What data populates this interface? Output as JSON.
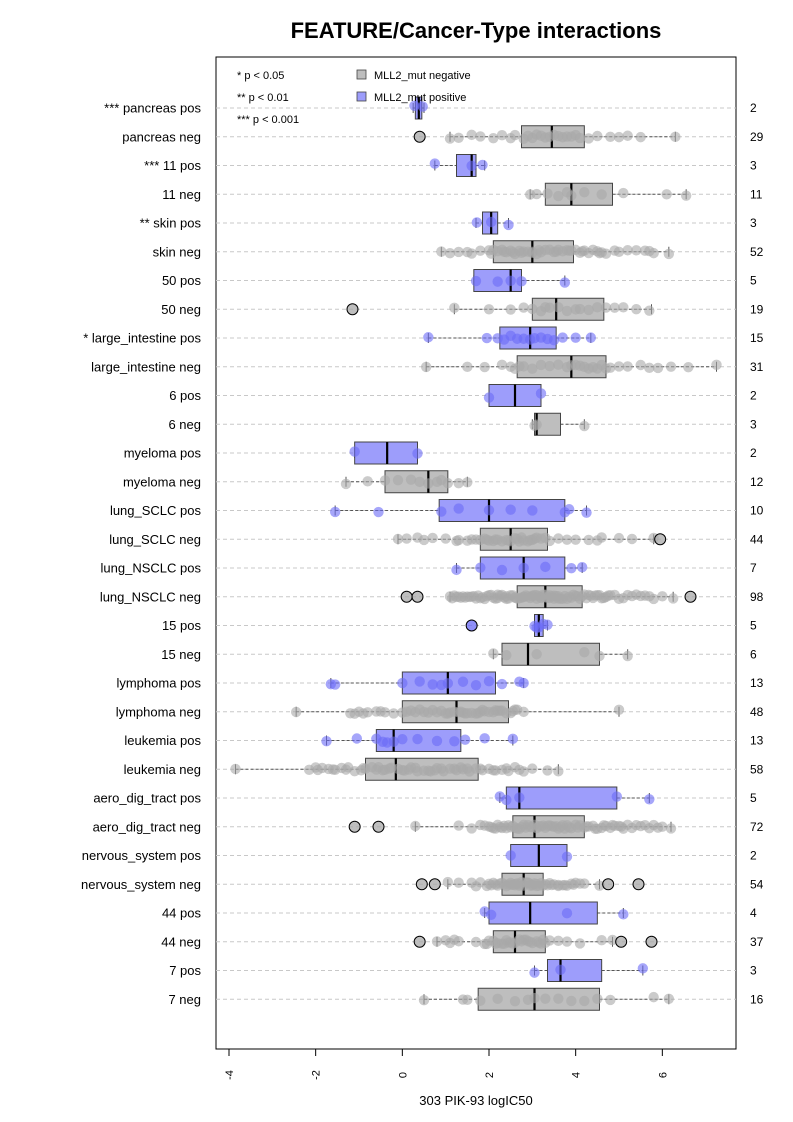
{
  "chart_data": {
    "type": "boxplot",
    "title": "FEATURE/Cancer-Type interactions",
    "xlabel": "303 PIK-93 logIC50",
    "xlim": [
      -4.3,
      7.7
    ],
    "xticks": [
      -4,
      -2,
      0,
      2,
      4,
      6
    ],
    "significance_notes": [
      "* p < 0.05",
      "** p < 0.01",
      "*** p < 0.001"
    ],
    "legend": [
      {
        "label": "MLL2_mut negative",
        "color": "#bebebe"
      },
      {
        "label": "MLL2_mut positive",
        "color": "#9d9dfb"
      }
    ],
    "colors": {
      "negative_box": "#bebebe",
      "positive_box": "#9d9dfb",
      "negative_point": "#a8a8a8",
      "positive_point": "#6a6af7"
    },
    "rows": [
      {
        "label": "*** pancreas pos",
        "n": "2",
        "group": "pos",
        "min": 0.25,
        "q1": 0.3,
        "median": 0.38,
        "q3": 0.45,
        "max": 0.5,
        "points": [
          0.28,
          0.47
        ],
        "outliers": []
      },
      {
        "label": "pancreas neg",
        "n": "29",
        "group": "neg",
        "min": 1.1,
        "q1": 2.75,
        "median": 3.45,
        "q3": 4.2,
        "max": 6.3,
        "points": [
          1.1,
          1.3,
          1.6,
          1.8,
          2.1,
          2.3,
          2.5,
          2.6,
          2.8,
          2.9,
          3.0,
          3.1,
          3.2,
          3.3,
          3.4,
          3.5,
          3.6,
          3.7,
          3.8,
          3.9,
          4.0,
          4.1,
          4.3,
          4.5,
          4.8,
          5.0,
          5.2,
          5.5,
          6.3
        ],
        "outliers": [
          0.4
        ]
      },
      {
        "label": "*** 11 pos",
        "n": "3",
        "group": "pos",
        "min": 0.75,
        "q1": 1.25,
        "median": 1.6,
        "q3": 1.7,
        "max": 1.9,
        "points": [
          0.75,
          1.6,
          1.85
        ],
        "outliers": []
      },
      {
        "label": "11 neg",
        "n": "11",
        "group": "neg",
        "min": 2.95,
        "q1": 3.3,
        "median": 3.9,
        "q3": 4.85,
        "max": 6.55,
        "points": [
          2.95,
          3.1,
          3.35,
          3.6,
          3.8,
          3.9,
          4.2,
          4.6,
          5.1,
          6.1,
          6.55
        ],
        "outliers": []
      },
      {
        "label": "** skin pos",
        "n": "3",
        "group": "pos",
        "min": 1.7,
        "q1": 1.85,
        "median": 2.05,
        "q3": 2.2,
        "max": 2.45,
        "points": [
          1.72,
          2.05,
          2.45
        ],
        "outliers": []
      },
      {
        "label": "skin neg",
        "n": "52",
        "group": "neg",
        "min": 0.9,
        "q1": 2.1,
        "median": 3.0,
        "q3": 3.95,
        "max": 6.15,
        "points": [
          0.9,
          1.1,
          1.3,
          1.6,
          1.8,
          2.0,
          2.1,
          2.2,
          2.3,
          2.4,
          2.5,
          2.6,
          2.7,
          2.8,
          2.9,
          3.0,
          3.0,
          3.1,
          3.2,
          3.3,
          3.4,
          3.5,
          3.6,
          3.7,
          3.8,
          3.9,
          4.0,
          4.1,
          4.2,
          4.3,
          4.4,
          4.5,
          4.6,
          4.7,
          4.9,
          5.0,
          5.2,
          5.4,
          5.6,
          5.8,
          6.15,
          2.05,
          2.35,
          2.75,
          3.15,
          3.55,
          3.85,
          4.15,
          4.55,
          1.5,
          5.7,
          2.55
        ],
        "outliers": []
      },
      {
        "label": "50 pos",
        "n": "5",
        "group": "pos",
        "min": 1.65,
        "q1": 1.65,
        "median": 2.5,
        "q3": 2.75,
        "max": 3.75,
        "points": [
          1.7,
          2.2,
          2.5,
          2.75,
          3.75
        ],
        "outliers": []
      },
      {
        "label": "50 neg",
        "n": "19",
        "group": "neg",
        "min": 1.2,
        "q1": 3.0,
        "median": 3.55,
        "q3": 4.65,
        "max": 5.75,
        "points": [
          1.2,
          2.0,
          2.5,
          2.8,
          3.0,
          3.2,
          3.4,
          3.6,
          3.8,
          4.0,
          4.1,
          4.3,
          4.5,
          4.7,
          4.9,
          5.1,
          5.4,
          5.7,
          3.3
        ],
        "outliers": [
          -1.15
        ]
      },
      {
        "label": "* large_intestine pos",
        "n": "15",
        "group": "pos",
        "min": 0.6,
        "q1": 2.25,
        "median": 2.95,
        "q3": 3.55,
        "max": 4.35,
        "points": [
          0.6,
          1.95,
          2.2,
          2.35,
          2.5,
          2.65,
          2.8,
          2.95,
          3.05,
          3.2,
          3.35,
          3.5,
          3.7,
          4.0,
          4.35
        ],
        "outliers": []
      },
      {
        "label": "large_intestine neg",
        "n": "31",
        "group": "neg",
        "min": 0.55,
        "q1": 2.65,
        "median": 3.9,
        "q3": 4.7,
        "max": 7.25,
        "points": [
          0.55,
          1.5,
          1.9,
          2.3,
          2.5,
          2.6,
          2.8,
          3.0,
          3.2,
          3.4,
          3.6,
          3.8,
          3.9,
          4.0,
          4.1,
          4.2,
          4.3,
          4.4,
          4.5,
          4.6,
          4.7,
          4.8,
          5.0,
          5.2,
          5.5,
          5.7,
          5.9,
          6.2,
          6.6,
          7.25,
          2.7
        ],
        "outliers": []
      },
      {
        "label": "6 pos",
        "n": "2",
        "group": "pos",
        "min": 2.0,
        "q1": 2.0,
        "median": 2.6,
        "q3": 3.2,
        "max": 3.2,
        "points": [
          2.0,
          3.2
        ],
        "outliers": []
      },
      {
        "label": "6 neg",
        "n": "3",
        "group": "neg",
        "min": 3.0,
        "q1": 3.05,
        "median": 3.1,
        "q3": 3.65,
        "max": 4.2,
        "points": [
          3.05,
          3.1,
          4.2
        ],
        "outliers": []
      },
      {
        "label": "myeloma pos",
        "n": "2",
        "group": "pos",
        "min": -1.1,
        "q1": -1.1,
        "median": -0.35,
        "q3": 0.35,
        "max": 0.35,
        "points": [
          -1.1,
          0.35
        ],
        "outliers": []
      },
      {
        "label": "myeloma neg",
        "n": "12",
        "group": "neg",
        "min": -1.3,
        "q1": -0.4,
        "median": 0.6,
        "q3": 1.05,
        "max": 1.5,
        "points": [
          -1.3,
          -0.8,
          -0.4,
          -0.1,
          0.2,
          0.4,
          0.6,
          0.8,
          0.9,
          1.05,
          1.3,
          1.5
        ],
        "outliers": []
      },
      {
        "label": "lung_SCLC pos",
        "n": "10",
        "group": "pos",
        "min": -1.55,
        "q1": 0.85,
        "median": 2.0,
        "q3": 3.75,
        "max": 4.25,
        "points": [
          -1.55,
          -0.55,
          0.9,
          1.3,
          2.0,
          2.5,
          3.0,
          3.75,
          3.85,
          4.25
        ],
        "outliers": []
      },
      {
        "label": "lung_SCLC neg",
        "n": "44",
        "group": "neg",
        "min": -0.1,
        "q1": 1.8,
        "median": 2.5,
        "q3": 3.35,
        "max": 5.8,
        "points": [
          -0.1,
          0.1,
          0.5,
          0.7,
          1.0,
          1.3,
          1.5,
          1.7,
          1.8,
          1.9,
          2.0,
          2.1,
          2.2,
          2.3,
          2.4,
          2.5,
          2.6,
          2.7,
          2.8,
          2.9,
          3.0,
          3.1,
          3.2,
          3.3,
          3.4,
          3.6,
          3.8,
          4.0,
          4.3,
          4.6,
          5.0,
          5.3,
          5.8,
          1.6,
          2.15,
          2.45,
          2.75,
          3.05,
          1.25,
          0.35,
          4.5,
          2.95,
          1.95,
          2.65
        ],
        "outliers": [
          5.95
        ]
      },
      {
        "label": "lung_NSCLC pos",
        "n": "7",
        "group": "pos",
        "min": 1.25,
        "q1": 1.8,
        "median": 2.8,
        "q3": 3.75,
        "max": 4.15,
        "points": [
          1.25,
          1.8,
          2.3,
          2.8,
          3.3,
          3.9,
          4.15
        ],
        "outliers": []
      },
      {
        "label": "lung_NSCLC neg",
        "n": "98",
        "group": "neg",
        "min": 1.1,
        "q1": 2.65,
        "median": 3.3,
        "q3": 4.15,
        "max": 6.25,
        "points": [
          1.1,
          1.2,
          1.3,
          1.4,
          1.5,
          1.6,
          1.7,
          1.8,
          1.9,
          2.0,
          2.1,
          2.2,
          2.3,
          2.4,
          2.5,
          2.6,
          2.7,
          2.8,
          2.9,
          3.0,
          3.1,
          3.2,
          3.3,
          3.4,
          3.5,
          3.6,
          3.7,
          3.8,
          3.9,
          4.0,
          4.1,
          4.2,
          4.3,
          4.4,
          4.5,
          4.6,
          4.7,
          4.8,
          4.9,
          5.0,
          5.2,
          5.4,
          5.6,
          5.8,
          6.0,
          6.25,
          1.15,
          1.35,
          1.55,
          1.75,
          1.95,
          2.15,
          2.35,
          2.55,
          2.75,
          2.95,
          3.15,
          3.35,
          3.55,
          3.75,
          3.95,
          4.15,
          4.35,
          4.55,
          4.75,
          5.1,
          5.3,
          5.5,
          2.05,
          2.25,
          2.45,
          2.65,
          2.85,
          3.05,
          3.25,
          3.45,
          3.65,
          3.85,
          4.05,
          4.25,
          1.45,
          1.65,
          1.85,
          2.8,
          3.0,
          3.2,
          3.4,
          3.6,
          2.6,
          2.4,
          2.2,
          3.1,
          3.3,
          3.5,
          4.45,
          4.65,
          5.7,
          1.25
        ],
        "outliers": [
          0.1,
          0.35,
          6.65
        ]
      },
      {
        "label": "15 pos",
        "n": "5",
        "group": "pos",
        "min": 3.05,
        "q1": 3.05,
        "median": 3.15,
        "q3": 3.25,
        "max": 3.35,
        "points": [
          3.05,
          3.1,
          3.15,
          3.25,
          3.35
        ],
        "outliers": [
          1.6
        ]
      },
      {
        "label": "15 neg",
        "n": "6",
        "group": "neg",
        "min": 2.1,
        "q1": 2.3,
        "median": 2.9,
        "q3": 4.55,
        "max": 5.2,
        "points": [
          2.1,
          2.4,
          3.1,
          4.2,
          4.55,
          5.2
        ],
        "outliers": []
      },
      {
        "label": "lymphoma pos",
        "n": "13",
        "group": "pos",
        "min": -1.65,
        "q1": 0.0,
        "median": 1.05,
        "q3": 2.15,
        "max": 2.8,
        "points": [
          -1.65,
          -1.55,
          0.0,
          0.4,
          0.7,
          0.9,
          1.05,
          1.4,
          1.7,
          2.0,
          2.3,
          2.7,
          2.8
        ],
        "outliers": []
      },
      {
        "label": "lymphoma neg",
        "n": "48",
        "group": "neg",
        "min": -2.45,
        "q1": 0.0,
        "median": 1.25,
        "q3": 2.45,
        "max": 5.0,
        "points": [
          -2.45,
          -1.2,
          -1.0,
          -0.8,
          -0.6,
          -0.4,
          -0.2,
          0.0,
          0.2,
          0.4,
          0.6,
          0.8,
          1.0,
          1.1,
          1.2,
          1.3,
          1.4,
          1.5,
          1.6,
          1.7,
          1.8,
          1.9,
          2.0,
          2.1,
          2.2,
          2.3,
          2.4,
          2.5,
          2.6,
          2.8,
          5.0,
          -1.1,
          -0.5,
          0.1,
          0.5,
          0.9,
          1.35,
          1.75,
          2.15,
          2.55,
          -0.9,
          0.3,
          0.7,
          1.05,
          1.45,
          1.85,
          2.25,
          2.65
        ],
        "outliers": []
      },
      {
        "label": "leukemia pos",
        "n": "13",
        "group": "pos",
        "min": -1.75,
        "q1": -0.6,
        "median": -0.2,
        "q3": 1.35,
        "max": 2.55,
        "points": [
          -1.75,
          -1.05,
          -0.6,
          -0.45,
          -0.35,
          -0.2,
          0.0,
          0.35,
          0.8,
          1.2,
          1.45,
          1.9,
          2.55
        ],
        "outliers": []
      },
      {
        "label": "leukemia neg",
        "n": "58",
        "group": "neg",
        "min": -3.85,
        "q1": -0.85,
        "median": -0.15,
        "q3": 1.75,
        "max": 3.6,
        "points": [
          -3.85,
          -2.15,
          -2.0,
          -1.85,
          -1.7,
          -1.55,
          -1.4,
          -1.25,
          -1.1,
          -0.95,
          -0.85,
          -0.7,
          -0.55,
          -0.4,
          -0.25,
          -0.1,
          0.05,
          0.2,
          0.35,
          0.5,
          0.65,
          0.8,
          0.95,
          1.1,
          1.25,
          1.4,
          1.55,
          1.7,
          1.85,
          2.0,
          2.15,
          2.3,
          2.45,
          2.6,
          2.8,
          3.0,
          3.35,
          3.6,
          -1.95,
          -1.6,
          -1.3,
          -0.9,
          -0.6,
          -0.3,
          0.0,
          0.3,
          0.6,
          0.9,
          1.2,
          1.5,
          1.8,
          2.1,
          2.4,
          -0.45,
          0.15,
          0.75,
          1.35,
          2.7
        ],
        "outliers": []
      },
      {
        "label": "aero_dig_tract pos",
        "n": "5",
        "group": "pos",
        "min": 2.25,
        "q1": 2.4,
        "median": 2.7,
        "q3": 4.95,
        "max": 5.7,
        "points": [
          2.25,
          2.4,
          2.7,
          4.95,
          5.7
        ],
        "outliers": []
      },
      {
        "label": "aero_dig_tract neg",
        "n": "72",
        "group": "neg",
        "min": 0.3,
        "q1": 2.55,
        "median": 3.05,
        "q3": 4.2,
        "max": 6.2,
        "points": [
          0.3,
          1.3,
          1.6,
          1.8,
          2.0,
          2.1,
          2.2,
          2.3,
          2.4,
          2.5,
          2.6,
          2.7,
          2.8,
          2.9,
          3.0,
          3.1,
          3.2,
          3.3,
          3.4,
          3.5,
          3.6,
          3.7,
          3.8,
          3.9,
          4.0,
          4.1,
          4.2,
          4.3,
          4.4,
          4.5,
          4.6,
          4.7,
          4.8,
          4.9,
          5.0,
          5.1,
          5.2,
          5.3,
          5.4,
          5.5,
          5.6,
          5.7,
          5.8,
          5.9,
          6.0,
          6.2,
          2.05,
          2.25,
          2.45,
          2.65,
          2.85,
          3.05,
          3.25,
          3.45,
          3.65,
          3.85,
          4.05,
          4.25,
          4.45,
          4.65,
          4.85,
          5.05,
          1.9,
          2.15,
          2.35,
          2.55,
          2.75,
          2.95,
          3.15,
          3.35,
          3.55,
          3.75
        ],
        "outliers": [
          -1.1,
          -0.55
        ]
      },
      {
        "label": "nervous_system pos",
        "n": "2",
        "group": "pos",
        "min": 2.5,
        "q1": 2.5,
        "median": 3.15,
        "q3": 3.8,
        "max": 3.8,
        "points": [
          2.5,
          3.8
        ],
        "outliers": []
      },
      {
        "label": "nervous_system neg",
        "n": "54",
        "group": "neg",
        "min": 1.05,
        "q1": 2.3,
        "median": 2.8,
        "q3": 3.25,
        "max": 4.55,
        "points": [
          1.05,
          1.3,
          1.6,
          1.8,
          2.0,
          2.1,
          2.2,
          2.3,
          2.4,
          2.5,
          2.6,
          2.7,
          2.8,
          2.9,
          3.0,
          3.1,
          3.2,
          3.3,
          3.4,
          3.5,
          3.6,
          3.7,
          3.8,
          3.9,
          4.0,
          4.2,
          4.55,
          2.15,
          2.35,
          2.55,
          2.75,
          2.95,
          3.15,
          3.35,
          2.25,
          2.45,
          2.65,
          2.85,
          3.05,
          3.25,
          2.05,
          2.5,
          2.9,
          3.1,
          3.45,
          3.75,
          3.95,
          4.1,
          1.95,
          2.6,
          2.7,
          3.0,
          3.6,
          1.7
        ],
        "outliers": [
          0.45,
          0.75,
          4.75,
          5.45
        ]
      },
      {
        "label": "44 pos",
        "n": "4",
        "group": "pos",
        "min": 1.9,
        "q1": 2.0,
        "median": 2.95,
        "q3": 4.5,
        "max": 5.1,
        "points": [
          1.9,
          2.05,
          3.8,
          5.1
        ],
        "outliers": []
      },
      {
        "label": "44 neg",
        "n": "37",
        "group": "neg",
        "min": 0.8,
        "q1": 2.1,
        "median": 2.6,
        "q3": 3.3,
        "max": 4.85,
        "points": [
          0.8,
          1.0,
          1.1,
          1.3,
          1.7,
          1.9,
          2.0,
          2.1,
          2.2,
          2.3,
          2.4,
          2.5,
          2.6,
          2.7,
          2.8,
          2.9,
          3.0,
          3.1,
          3.2,
          3.3,
          3.4,
          3.6,
          3.8,
          4.1,
          4.6,
          4.85,
          2.15,
          2.35,
          2.55,
          2.75,
          2.95,
          3.15,
          1.2,
          1.95,
          2.45,
          2.85,
          3.25
        ],
        "outliers": [
          0.4,
          5.05,
          5.75
        ]
      },
      {
        "label": "7 pos",
        "n": "3",
        "group": "pos",
        "min": 3.05,
        "q1": 3.35,
        "median": 3.65,
        "q3": 4.6,
        "max": 5.55,
        "points": [
          3.05,
          3.65,
          5.55
        ],
        "outliers": []
      },
      {
        "label": "7 neg",
        "n": "16",
        "group": "neg",
        "min": 0.5,
        "q1": 1.75,
        "median": 3.05,
        "q3": 4.55,
        "max": 6.15,
        "points": [
          0.5,
          1.4,
          1.5,
          1.8,
          2.2,
          2.6,
          2.9,
          3.05,
          3.3,
          3.6,
          3.9,
          4.2,
          4.5,
          4.8,
          5.8,
          6.15
        ],
        "outliers": []
      }
    ]
  }
}
